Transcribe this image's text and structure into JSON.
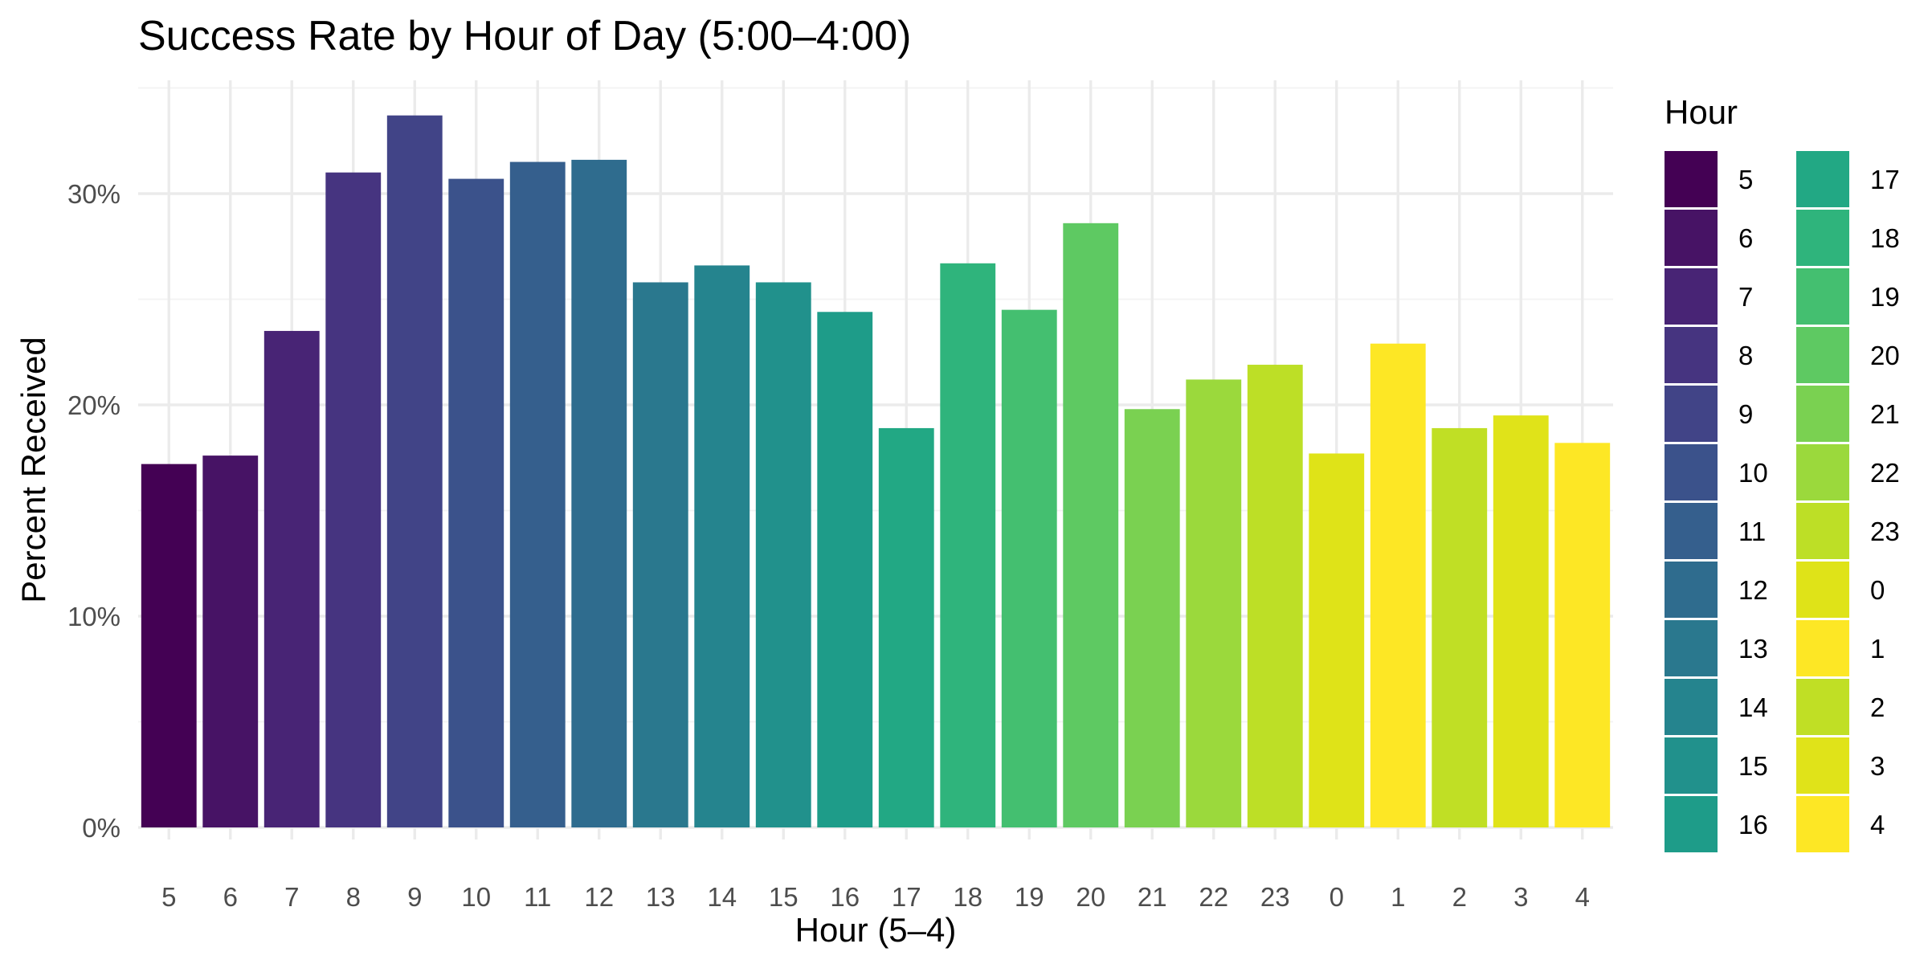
{
  "chart_data": {
    "type": "bar",
    "title": "Success Rate by Hour of Day (5:00–4:00)",
    "xlabel": "Hour (5–4)",
    "ylabel": "Percent Received",
    "categories": [
      "5",
      "6",
      "7",
      "8",
      "9",
      "10",
      "11",
      "12",
      "13",
      "14",
      "15",
      "16",
      "17",
      "18",
      "19",
      "20",
      "21",
      "22",
      "23",
      "0",
      "1",
      "2",
      "3",
      "4"
    ],
    "values": [
      17.2,
      17.6,
      23.5,
      31.0,
      33.7,
      30.7,
      31.5,
      31.6,
      25.8,
      26.6,
      25.8,
      24.4,
      18.9,
      26.7,
      24.5,
      28.6,
      19.8,
      21.2,
      21.9,
      17.7,
      22.9,
      18.9,
      19.5,
      18.2
    ],
    "ylim": [
      0,
      35
    ],
    "y_ticks": [
      0,
      10,
      20,
      30
    ],
    "y_tick_labels": [
      "0%",
      "10%",
      "20%",
      "30%"
    ],
    "grid": true,
    "legend": {
      "title": "Hour",
      "placement": "right",
      "columns": 2
    },
    "colors": [
      "#440154",
      "#471365",
      "#482475",
      "#463480",
      "#414487",
      "#3b528b",
      "#355f8d",
      "#2f6c8e",
      "#2a788e",
      "#25848e",
      "#21918c",
      "#1e9c89",
      "#22a884",
      "#2fb47c",
      "#44bf70",
      "#5ec962",
      "#7ad151",
      "#9bd93c",
      "#bddf26",
      "#dfe318",
      "#fde725",
      "#c0df25",
      "#e0e319",
      "#fde725"
    ]
  }
}
